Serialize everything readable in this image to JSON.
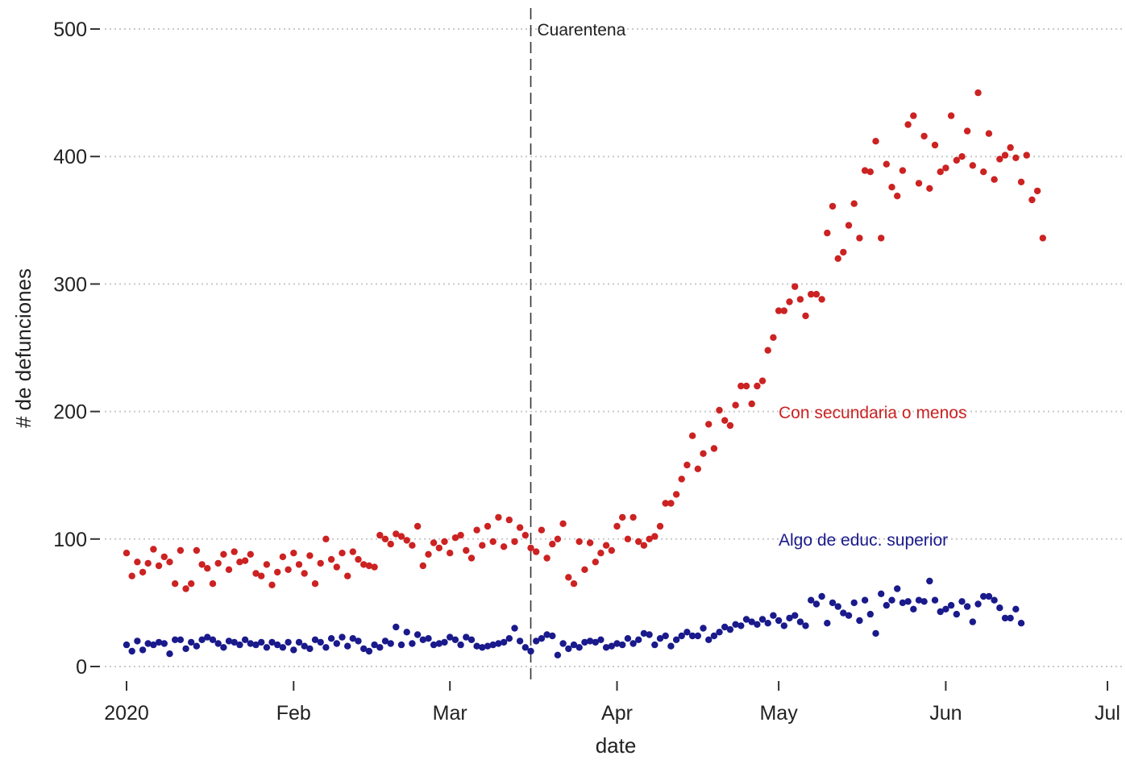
{
  "chart_data": {
    "type": "scatter",
    "xlabel": "date",
    "ylabel": "# de defunciones",
    "xlim": [
      "2020-01-01",
      "2020-07-01"
    ],
    "ylim": [
      0,
      500
    ],
    "y_ticks": [
      0,
      100,
      200,
      300,
      400,
      500
    ],
    "x_ticks": [
      {
        "date": "2020-01-01",
        "label": "2020"
      },
      {
        "date": "2020-02-01",
        "label": "Feb"
      },
      {
        "date": "2020-03-01",
        "label": "Mar"
      },
      {
        "date": "2020-04-01",
        "label": "Apr"
      },
      {
        "date": "2020-05-01",
        "label": "May"
      },
      {
        "date": "2020-06-01",
        "label": "Jun"
      },
      {
        "date": "2020-07-01",
        "label": "Jul"
      }
    ],
    "grid": "horizontal dotted",
    "legend": "none (direct labels)",
    "annotations": [
      {
        "text": "Cuarentena",
        "date": "2020-03-16",
        "type": "vertical-dashed-line"
      },
      {
        "text": "Con secundaria o menos",
        "series": 0
      },
      {
        "text": "Algo de educ. superior",
        "series": 1
      }
    ],
    "series": [
      {
        "color": "#cc2222",
        "start_date": "2020-01-01",
        "values": [
          89,
          71,
          82,
          74,
          81,
          92,
          79,
          86,
          82,
          65,
          91,
          61,
          65,
          91,
          80,
          77,
          65,
          81,
          88,
          76,
          90,
          82,
          83,
          88,
          73,
          71,
          80,
          64,
          74,
          86,
          76,
          89,
          80,
          73,
          87,
          65,
          81,
          100,
          84,
          78,
          89,
          71,
          90,
          84,
          80,
          79,
          78,
          103,
          100,
          96,
          104,
          102,
          99,
          95,
          110,
          79,
          88,
          97,
          93,
          98,
          89,
          101,
          103,
          91,
          85,
          107,
          95,
          110,
          98,
          117,
          94,
          115,
          98,
          109,
          103,
          93,
          90,
          107,
          85,
          96,
          100,
          112,
          70,
          65,
          98,
          76,
          97,
          82,
          89,
          95,
          91,
          110,
          117,
          100,
          117,
          98,
          95,
          100,
          102,
          110,
          128,
          128,
          135,
          147,
          158,
          181,
          155,
          167,
          190,
          171,
          201,
          193,
          189,
          205,
          220,
          220,
          206,
          220,
          224,
          248,
          258,
          279,
          279,
          286,
          298,
          288,
          275,
          292,
          292,
          288,
          340,
          361,
          320,
          325,
          346,
          363,
          336,
          389,
          388,
          412,
          336,
          394,
          376,
          369,
          389,
          425,
          432,
          379,
          416,
          375,
          409,
          388,
          391,
          432,
          397,
          400,
          420,
          393,
          450,
          388,
          418,
          382,
          398,
          401,
          407,
          399,
          380,
          401,
          366,
          373,
          336
        ]
      },
      {
        "color": "#1a1a8c",
        "start_date": "2020-01-01",
        "values": [
          17,
          12,
          20,
          13,
          18,
          17,
          19,
          18,
          10,
          21,
          21,
          14,
          19,
          16,
          21,
          23,
          21,
          18,
          15,
          20,
          19,
          17,
          21,
          18,
          17,
          19,
          15,
          19,
          17,
          15,
          19,
          13,
          19,
          16,
          14,
          21,
          19,
          15,
          22,
          18,
          23,
          16,
          22,
          20,
          14,
          12,
          17,
          15,
          20,
          18,
          31,
          17,
          27,
          18,
          25,
          21,
          22,
          17,
          18,
          19,
          23,
          21,
          17,
          23,
          21,
          16,
          15,
          16,
          17,
          18,
          19,
          22,
          30,
          20,
          15,
          12,
          20,
          22,
          25,
          24,
          9,
          18,
          14,
          17,
          15,
          19,
          20,
          19,
          21,
          15,
          16,
          18,
          17,
          22,
          18,
          21,
          26,
          25,
          17,
          22,
          24,
          16,
          21,
          24,
          27,
          24,
          24,
          30,
          21,
          24,
          27,
          31,
          29,
          33,
          32,
          37,
          35,
          33,
          37,
          34,
          40,
          36,
          32,
          38,
          40,
          35,
          32,
          52,
          49,
          55,
          34,
          50,
          47,
          42,
          40,
          50,
          36,
          52,
          41,
          26,
          57,
          48,
          52,
          61,
          50,
          51,
          45,
          52,
          51,
          67,
          52,
          43,
          45,
          48,
          41,
          51,
          47,
          35,
          49,
          55,
          55,
          52,
          46,
          38,
          38,
          45,
          34
        ]
      }
    ]
  }
}
